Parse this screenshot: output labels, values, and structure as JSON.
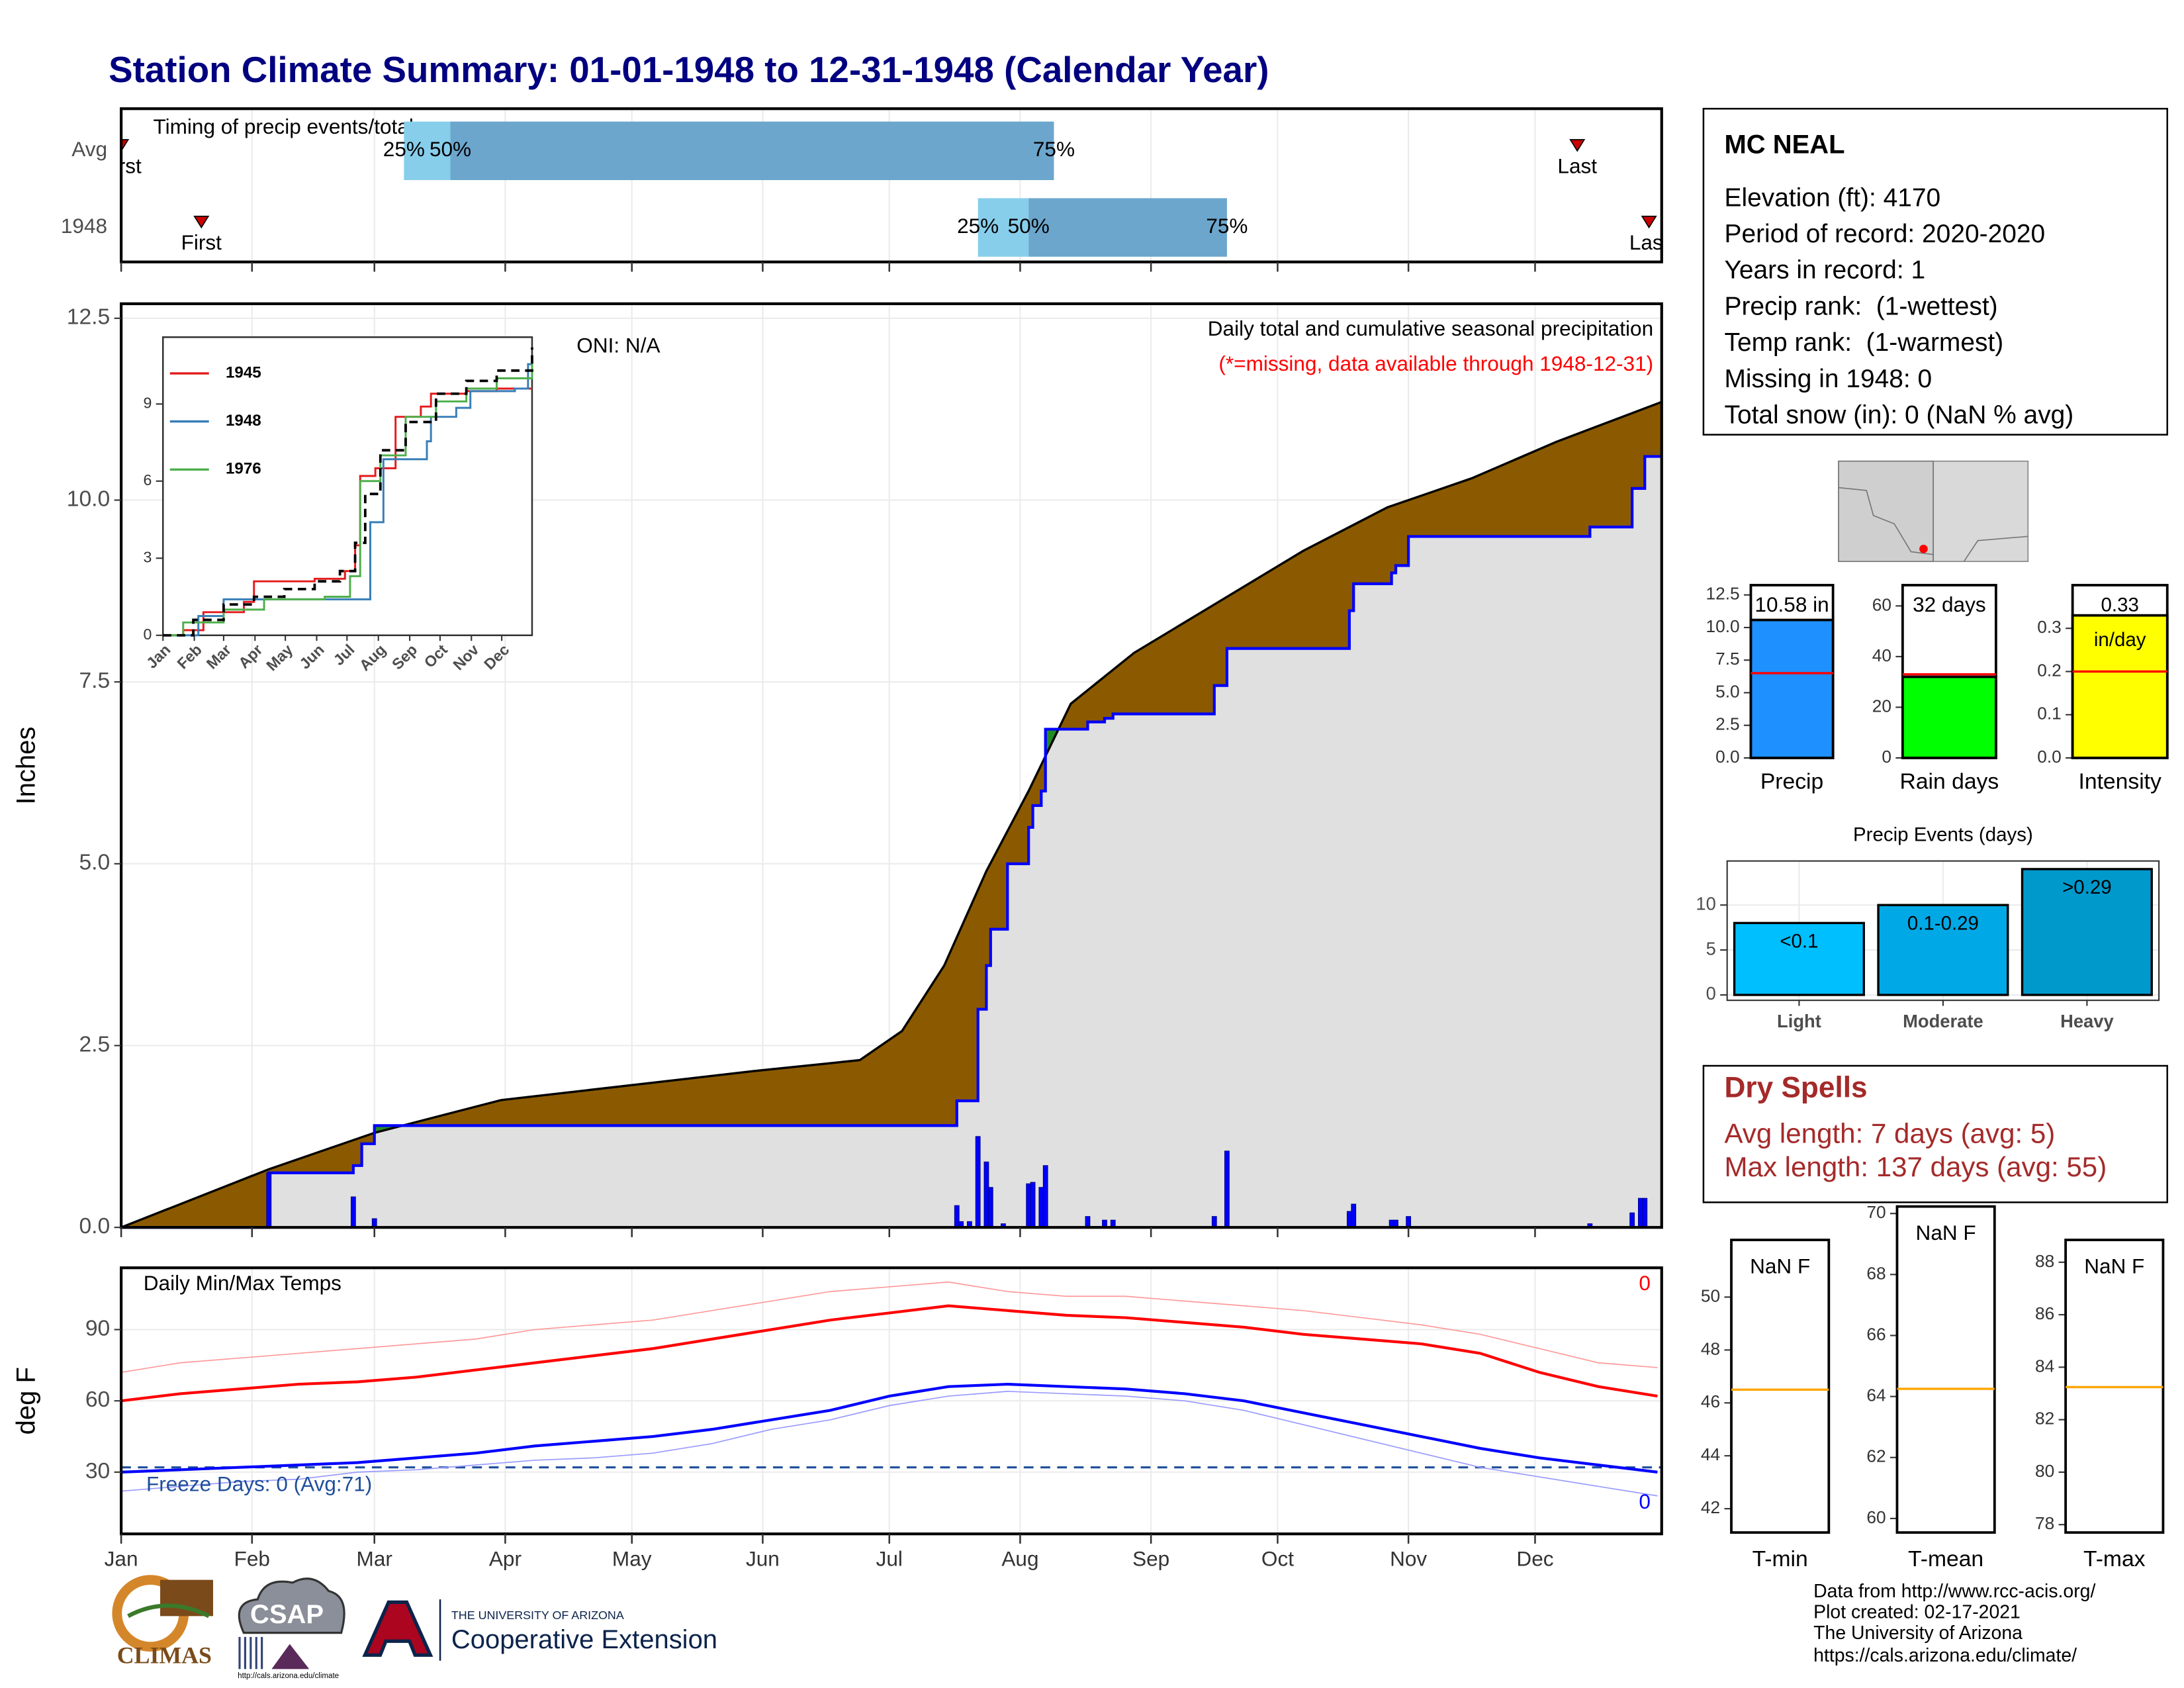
{
  "title": "Station Climate Summary: 01-01-1948 to 12-31-1948 (Calendar Year)",
  "chart_data": [
    {
      "type": "timing",
      "title": "Timing of precip events/totals",
      "xlim": [
        0,
        365
      ],
      "labels": {
        "first": "First",
        "p25": "25%",
        "p50": "50%",
        "p75": "75%",
        "last": "Last"
      },
      "colors": {
        "early": "#87ceeb",
        "late": "#6ca6cd",
        "marker": "#cc0000"
      },
      "rows": [
        {
          "name": "Avg",
          "first": 0,
          "p25": 67,
          "p50": 78,
          "p75": 221,
          "last": 345
        },
        {
          "name": "1948",
          "first": 19,
          "p25": 203,
          "p50": 215,
          "p75": 262,
          "last": 362
        }
      ]
    },
    {
      "type": "cumulative",
      "xlim": [
        0,
        365
      ],
      "ylim": [
        0,
        12.7
      ],
      "yticks": [
        {
          "value": 0,
          "label": "0.0"
        },
        2.5,
        {
          "value": 5,
          "label": "5.0"
        },
        7.5,
        {
          "value": 10,
          "label": "10.0"
        },
        12.5
      ],
      "y_label": "Inches",
      "oni": "ONI: N/A",
      "subtitle": "Daily total and cumulative seasonal precipitation",
      "note": "(*=missing, data available through 1948-12-31)",
      "fills": {
        "below": "#8b5a00",
        "above": "#228b22",
        "base": "#e0e0e0"
      },
      "series": [
        {
          "name": "Avg",
          "color": "#000000",
          "step": false,
          "x": [
            0,
            35,
            60,
            90,
            120,
            150,
            175,
            185,
            195,
            205,
            215,
            225,
            240,
            260,
            280,
            300,
            320,
            340,
            365
          ],
          "values": [
            0,
            0.8,
            1.3,
            1.75,
            1.95,
            2.15,
            2.3,
            2.7,
            3.6,
            4.9,
            6.0,
            7.2,
            7.9,
            8.6,
            9.3,
            9.9,
            10.3,
            10.8,
            11.35
          ]
        },
        {
          "name": "1948",
          "color": "#0000ff",
          "step": true,
          "x": [
            0,
            35,
            55,
            57,
            60,
            198,
            203,
            205,
            206,
            210,
            215,
            216,
            218,
            219,
            229,
            233,
            235,
            259,
            262,
            291,
            292,
            301,
            302,
            305,
            348,
            358,
            361,
            365
          ],
          "values": [
            0,
            0.75,
            0.85,
            1.15,
            1.4,
            1.74,
            3.0,
            3.6,
            4.1,
            5.0,
            5.5,
            5.8,
            6.0,
            6.85,
            6.95,
            7.0,
            7.06,
            7.45,
            7.96,
            8.48,
            8.85,
            9.0,
            9.1,
            9.5,
            9.63,
            10.16,
            10.6,
            10.6
          ]
        }
      ],
      "daily": {
        "color": "#0000ff",
        "x": [
          35,
          55,
          60,
          198,
          199,
          201,
          203,
          205,
          206,
          209,
          215,
          216,
          218,
          219,
          229,
          233,
          235,
          259,
          262,
          291,
          292,
          301,
          302,
          305,
          348,
          358,
          360,
          361
        ],
        "values": [
          0.75,
          0.42,
          0.12,
          0.3,
          0.08,
          0.08,
          1.25,
          0.9,
          0.55,
          0.05,
          0.6,
          0.62,
          0.55,
          0.85,
          0.15,
          0.1,
          0.1,
          0.15,
          1.05,
          0.22,
          0.32,
          0.1,
          0.1,
          0.15,
          0.05,
          0.2,
          0.4,
          0.4
        ]
      }
    },
    {
      "type": "inset",
      "xlim": [
        0,
        365
      ],
      "ylim": [
        0,
        11.6
      ],
      "yticks": [
        0,
        3,
        6,
        9
      ],
      "xticks": [
        {
          "value": 0,
          "label": "Jan"
        },
        {
          "value": 31,
          "label": "Feb"
        },
        {
          "value": 60,
          "label": "Mar"
        },
        {
          "value": 91,
          "label": "Apr"
        },
        {
          "value": 121,
          "label": "May"
        },
        {
          "value": 152,
          "label": "Jun"
        },
        {
          "value": 182,
          "label": "Jul"
        },
        {
          "value": 213,
          "label": "Aug"
        },
        {
          "value": 244,
          "label": "Sep"
        },
        {
          "value": 274,
          "label": "Oct"
        },
        {
          "value": 305,
          "label": "Nov"
        },
        {
          "value": 335,
          "label": "Dec"
        }
      ],
      "series": [
        {
          "name": "1945",
          "color": "#e41a1c",
          "x": [
            0,
            20,
            40,
            80,
            90,
            150,
            180,
            190,
            195,
            210,
            230,
            255,
            265,
            300,
            330,
            365
          ],
          "values": [
            0,
            0.2,
            0.9,
            1.3,
            2.1,
            2.2,
            2.5,
            3.5,
            6.2,
            6.5,
            8.5,
            8.9,
            9.4,
            9.5,
            9.6,
            9.6
          ]
        },
        {
          "name": "1948",
          "color": "#377eb8",
          "x": [
            0,
            35,
            60,
            198,
            205,
            218,
            261,
            265,
            290,
            304,
            348,
            361,
            365
          ],
          "values": [
            0,
            0.75,
            1.4,
            1.4,
            4.4,
            6.85,
            7.55,
            8.5,
            8.85,
            9.5,
            9.6,
            10.55,
            10.6
          ]
        },
        {
          "name": "1976",
          "color": "#4daf4a",
          "x": [
            0,
            20,
            60,
            100,
            160,
            185,
            195,
            215,
            240,
            270,
            300,
            330,
            365
          ],
          "values": [
            0,
            0.5,
            1.0,
            1.4,
            1.5,
            2.3,
            6.0,
            7.0,
            8.5,
            9.1,
            9.6,
            10.0,
            10.6
          ]
        },
        {
          "color": "#000000",
          "dashed": true,
          "x": [
            0,
            30,
            60,
            90,
            120,
            150,
            175,
            190,
            200,
            215,
            240,
            270,
            300,
            330,
            365
          ],
          "values": [
            0,
            0.6,
            1.2,
            1.5,
            1.8,
            2.1,
            2.5,
            3.6,
            5.5,
            7.2,
            8.3,
            9.4,
            9.9,
            10.3,
            11.2
          ]
        }
      ]
    },
    {
      "type": "temps",
      "title": "Daily Min/Max Temps",
      "xlim": [
        0,
        365
      ],
      "ylim": [
        4,
        116
      ],
      "yticks": [
        30,
        60,
        90
      ],
      "y_label": "deg F",
      "freeze_line": 32,
      "freeze_color": "#1f4e9a",
      "freeze_label": "Freeze Days: 0 (Avg:71)",
      "max_note": 0,
      "min_note": 0,
      "xticks": [
        {
          "value": 0,
          "label": "Jan"
        },
        {
          "value": 31,
          "label": "Feb"
        },
        {
          "value": 60,
          "label": "Mar"
        },
        {
          "value": 91,
          "label": "Apr"
        },
        {
          "value": 121,
          "label": "May"
        },
        {
          "value": 152,
          "label": "Jun"
        },
        {
          "value": 182,
          "label": "Jul"
        },
        {
          "value": 213,
          "label": "Aug"
        },
        {
          "value": 244,
          "label": "Sep"
        },
        {
          "value": 274,
          "label": "Oct"
        },
        {
          "value": 305,
          "label": "Nov"
        },
        {
          "value": 335,
          "label": "Dec"
        }
      ],
      "x": [
        0,
        14,
        28,
        42,
        56,
        70,
        84,
        98,
        112,
        126,
        140,
        154,
        168,
        182,
        196,
        210,
        224,
        238,
        252,
        266,
        280,
        294,
        308,
        322,
        336,
        350,
        364
      ],
      "series": [
        {
          "color": "#ff9a9a",
          "linewidth": 0.8,
          "values": [
            72,
            76,
            78,
            80,
            82,
            84,
            86,
            90,
            92,
            94,
            98,
            102,
            106,
            108,
            110,
            106,
            104,
            104,
            102,
            100,
            98,
            95,
            92,
            88,
            82,
            76,
            74
          ]
        },
        {
          "color": "#9a9aff",
          "linewidth": 0.8,
          "values": [
            22,
            24,
            26,
            27,
            30,
            31,
            33,
            35,
            36,
            38,
            42,
            48,
            52,
            58,
            62,
            64,
            63,
            62,
            60,
            56,
            50,
            44,
            38,
            32,
            28,
            24,
            20
          ]
        },
        {
          "color": "#ff0000",
          "linewidth": 2,
          "values": [
            60,
            63,
            65,
            67,
            68,
            70,
            73,
            76,
            79,
            82,
            86,
            90,
            94,
            97,
            100,
            98,
            96,
            95,
            93,
            91,
            88,
            86,
            84,
            80,
            72,
            66,
            62
          ]
        },
        {
          "color": "#0000ff",
          "linewidth": 2,
          "values": [
            30,
            31,
            32,
            33,
            34,
            36,
            38,
            41,
            43,
            45,
            48,
            52,
            56,
            62,
            66,
            67,
            66,
            65,
            63,
            60,
            55,
            50,
            45,
            40,
            36,
            33,
            30
          ]
        }
      ]
    },
    {
      "type": "summary",
      "category": "Precip",
      "value": 10.58,
      "value_label": "10.58 in",
      "avg": 6.5,
      "color": "#1e90ff",
      "ylim": [
        0,
        13.25
      ],
      "yticks": [
        {
          "value": 0,
          "label": "0.0"
        },
        2.5,
        {
          "value": 5,
          "label": "5.0"
        },
        7.5,
        {
          "value": 10,
          "label": "10.0"
        },
        12.5
      ]
    },
    {
      "type": "summary",
      "category": "Rain days",
      "value": 32,
      "value_label": "32 days",
      "avg": 33,
      "color": "#00ff00",
      "ylim": [
        0,
        68.2
      ],
      "yticks": [
        0,
        20,
        40,
        60
      ]
    },
    {
      "type": "summary",
      "category": "Intensity",
      "value": 0.33,
      "value_label": "0.33 in/day",
      "avg": 0.2,
      "color": "#ffff00",
      "ylim": [
        0,
        0.4
      ],
      "yticks": [
        {
          "value": 0,
          "label": "0.0"
        },
        0.1,
        0.2,
        0.3
      ]
    },
    {
      "type": "events",
      "title": "Precip Events (days)",
      "categories": [
        "Light",
        "Moderate",
        "Heavy"
      ],
      "ranges": [
        "<0.1",
        "0.1-0.29",
        ">0.29"
      ],
      "values": [
        8,
        10,
        14
      ],
      "colors": [
        "#00bfff",
        "#00a9e6",
        "#0099cc"
      ],
      "ylim": [
        -0.6,
        14.9
      ],
      "yticks": [
        0,
        5,
        10
      ]
    },
    {
      "type": "tempbox",
      "category": "T-min",
      "value_label": "NaN F",
      "avg": 46.5,
      "avg_color": "#ffa500",
      "ylim": [
        41.1,
        52.16
      ],
      "yticks": [
        42,
        44,
        46,
        48,
        50
      ]
    },
    {
      "type": "tempbox",
      "category": "T-mean",
      "value_label": "NaN F",
      "avg": 64.25,
      "avg_color": "#ffa500",
      "ylim": [
        59.54,
        70.23
      ],
      "yticks": [
        60,
        62,
        64,
        66,
        68,
        70
      ]
    },
    {
      "type": "tempbox",
      "category": "T-max",
      "value_label": "NaN F",
      "avg": 83.24,
      "avg_color": "#ffa500",
      "ylim": [
        77.7,
        88.85
      ],
      "yticks": [
        78,
        80,
        82,
        84,
        86,
        88
      ]
    }
  ],
  "station": {
    "name": "MC NEAL",
    "lines": [
      "Elevation (ft): 4170",
      "Period of record: 2020-2020",
      "Years in record: 1",
      "Precip rank:  (1-wettest)",
      "Temp rank:  (1-warmest)",
      "Missing in 1948: 0",
      "Total snow (in): 0 (NaN % avg)"
    ]
  },
  "dry_spells": {
    "title": "Dry Spells",
    "lines": [
      "Avg length: 7 days (avg: 5)",
      "Max length: 137 days (avg: 55)"
    ]
  },
  "footer": [
    "Data from http://www.rcc-acis.org/",
    "Plot created: 02-17-2021",
    "The University of Arizona",
    "https://cals.arizona.edu/climate/"
  ],
  "logos": {
    "climas": "CLIMAS",
    "csap": "CSAP",
    "csap_url": "http://cals.arizona.edu/climate",
    "university": "THE UNIVERSITY OF ARIZONA",
    "extension": "Cooperative Extension"
  }
}
